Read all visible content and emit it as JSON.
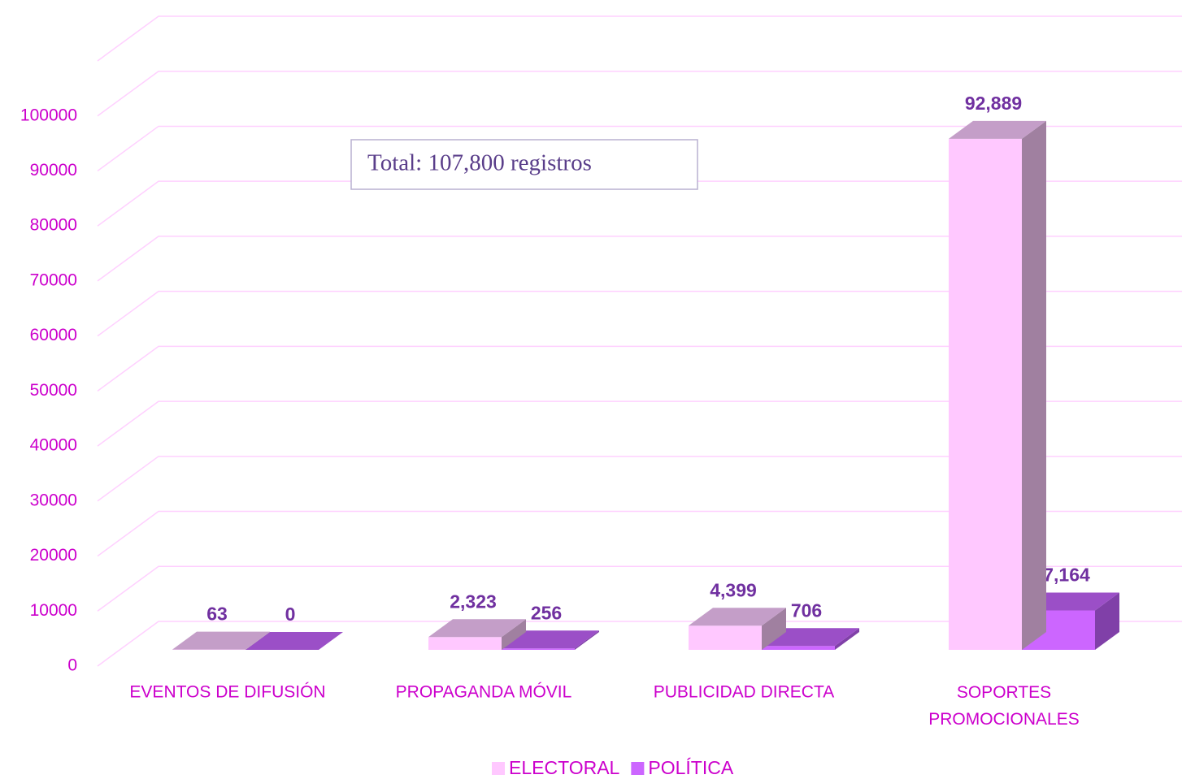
{
  "chart_data": {
    "type": "bar3d",
    "categories": [
      "EVENTOS DE DIFUSIÓN",
      "PROPAGANDA MÓVIL",
      "PUBLICIDAD DIRECTA",
      "SOPORTES PROMOCIONALES"
    ],
    "series": [
      {
        "name": "ELECTORAL",
        "color": "#ffc8ff",
        "values": [
          63,
          2323,
          4399,
          92889
        ],
        "value_labels": [
          "63",
          "2,323",
          "4,399",
          "92,889"
        ]
      },
      {
        "name": "POLÍTICA",
        "color": "#cc66ff",
        "values": [
          0,
          256,
          706,
          7164
        ],
        "value_labels": [
          "0",
          "256",
          "706",
          "7,164"
        ]
      }
    ],
    "ylim": [
      0,
      110000
    ],
    "yticks": [
      0,
      10000,
      20000,
      30000,
      40000,
      50000,
      60000,
      70000,
      80000,
      90000,
      100000
    ],
    "grid": true,
    "legend": "bottom",
    "annotation": "Total: 107,800 registros"
  }
}
